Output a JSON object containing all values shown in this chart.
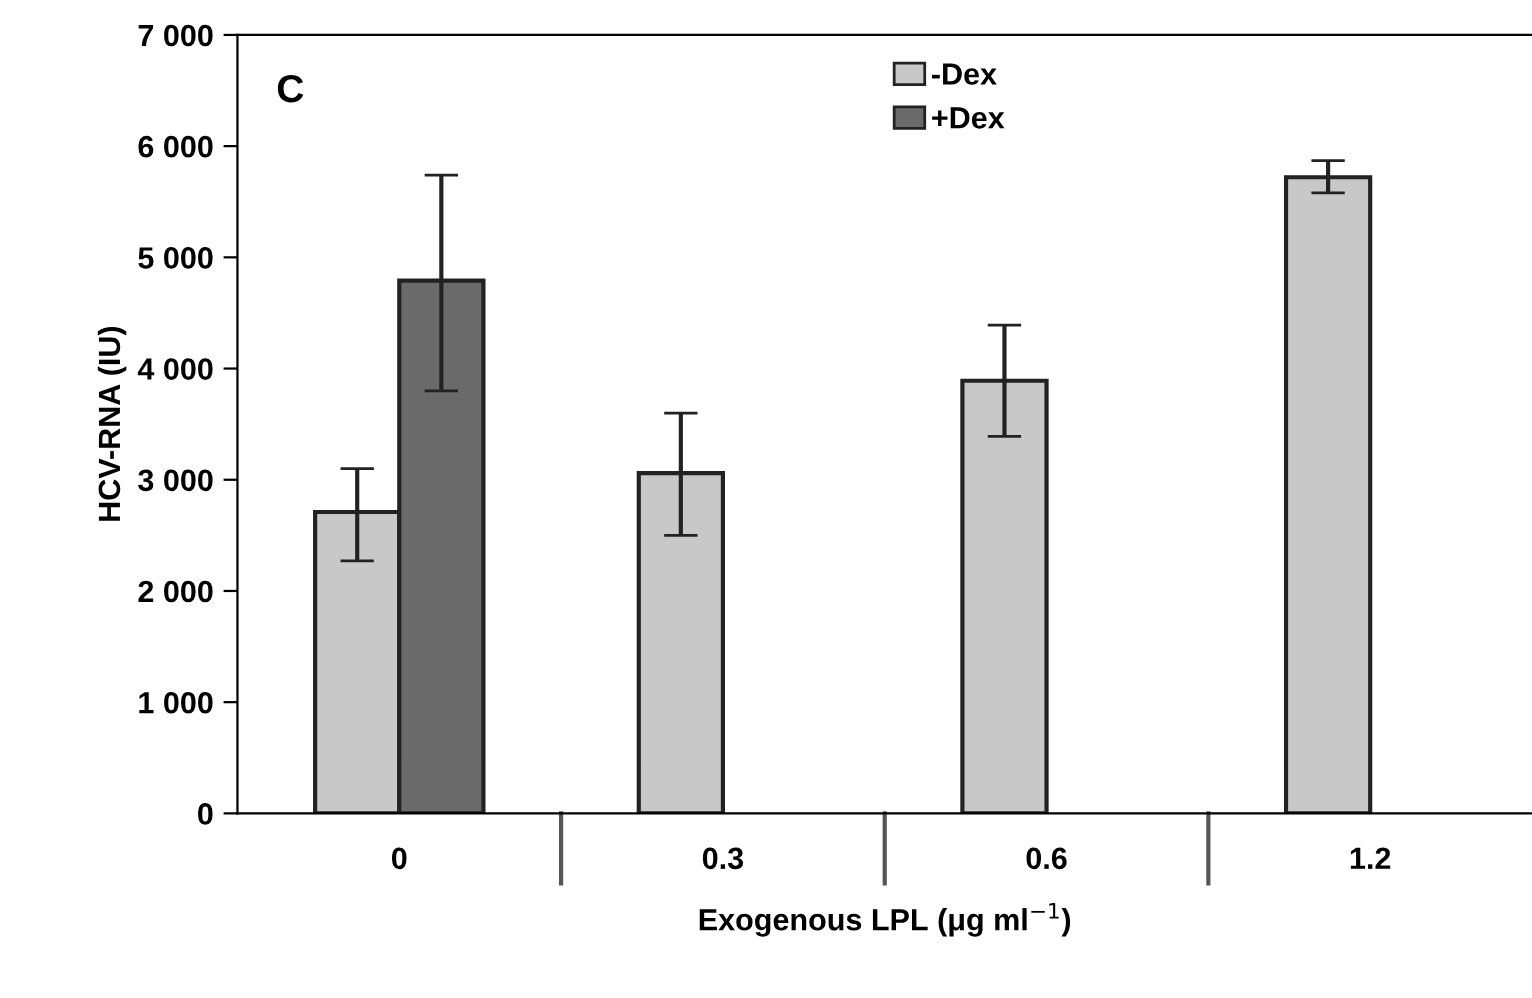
{
  "chart_data": {
    "type": "bar",
    "xlabel": "Exogenous LPL (μg ml$^{−1}$)",
    "ylabel": "HCV-RNA (IU)",
    "categories": [
      "0",
      "0.3",
      "0.6",
      "1.2"
    ],
    "series": [
      {
        "name": "-Dex",
        "color": "#c8c8c8",
        "values": [
          2710,
          3060,
          3890,
          5720
        ],
        "errors": [
          [
            2270,
            3100
          ],
          [
            2500,
            3600
          ],
          [
            3390,
            4390
          ],
          [
            5580,
            5870
          ]
        ]
      },
      {
        "name": "+Dex",
        "color": "#6a6a6a",
        "values": [
          4790,
          null,
          null,
          null
        ],
        "errors": [
          [
            3800,
            5740
          ],
          null,
          null,
          null
        ]
      }
    ],
    "ylim": [
      0,
      7000
    ],
    "yticks": [
      0,
      {
        "value": 1000,
        "label": "1 000"
      },
      {
        "value": 2000,
        "label": "2 000"
      },
      {
        "value": 3000,
        "label": "3 000"
      },
      {
        "value": 4000,
        "label": "4 000"
      },
      {
        "value": 5000,
        "label": "5 000"
      },
      {
        "value": 6000,
        "label": "6 000"
      },
      {
        "value": 7000,
        "label": "7 000"
      }
    ],
    "annotations": [
      "C"
    ],
    "legend": "top",
    "grid": false
  }
}
